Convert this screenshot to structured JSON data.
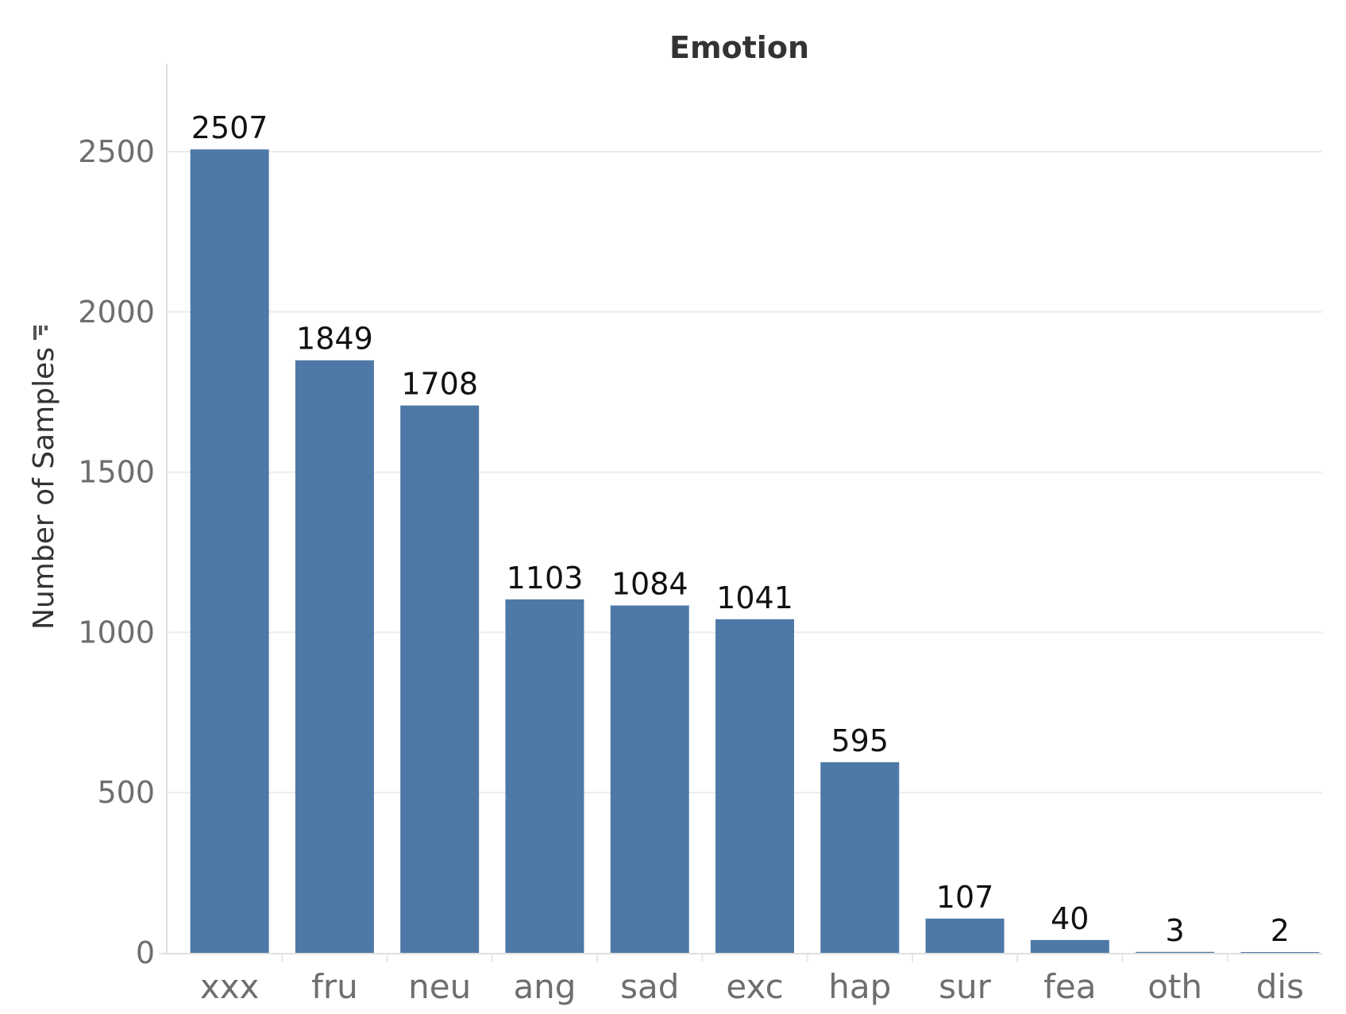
{
  "chart_data": {
    "type": "bar",
    "title": "Emotion",
    "ylabel": "Number of Samples",
    "xlabel": "",
    "categories": [
      "xxx",
      "fru",
      "neu",
      "ang",
      "sad",
      "exc",
      "hap",
      "sur",
      "fea",
      "oth",
      "dis"
    ],
    "values": [
      2507,
      1849,
      1708,
      1103,
      1084,
      1041,
      595,
      107,
      40,
      3,
      2
    ],
    "yticks": [
      0,
      500,
      1000,
      1500,
      2000,
      2500
    ],
    "ylim": [
      0,
      2700
    ],
    "grid": true,
    "legend": "none",
    "bar_color": "#4e79a7",
    "sort_icon": "sort-descending-icon"
  }
}
